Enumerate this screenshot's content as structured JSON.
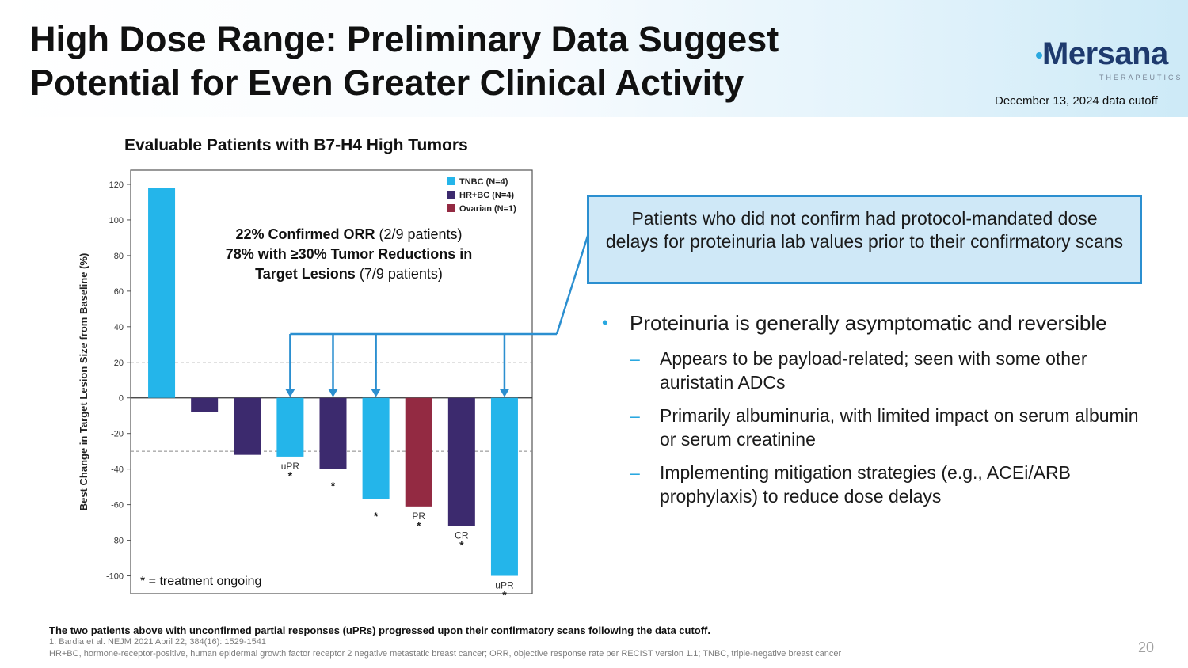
{
  "slide": {
    "title_line1": "High Dose Range: Preliminary Data Suggest",
    "title_line2": "Potential for Even Greater Clinical Activity",
    "cutoff": "December 13, 2024 data cutoff",
    "page_number": "20"
  },
  "logo": {
    "word": "Mersana",
    "sub": "THERAPEUTICS"
  },
  "chart_data": {
    "type": "bar",
    "title": "Evaluable Patients with B7-H4 High Tumors",
    "ylabel": "Best Change in Target Lesion Size from Baseline (%)",
    "xlabel": "",
    "ylim": [
      -110,
      128
    ],
    "yticks": [
      120,
      100,
      80,
      60,
      40,
      20,
      0,
      -20,
      -40,
      -60,
      -80,
      -100
    ],
    "reference_lines": [
      20,
      -30
    ],
    "legend": [
      {
        "name": "TNBC (N=4)",
        "color": "#24b5ea"
      },
      {
        "name": "HR+BC (N=4)",
        "color": "#3c2a6e"
      },
      {
        "name": "Ovarian (N=1)",
        "color": "#932a42"
      }
    ],
    "legend_position": "top-right",
    "bars": [
      {
        "value": 118,
        "group": "TNBC (N=4)",
        "label": "",
        "ongoing": false
      },
      {
        "value": -8,
        "group": "HR+BC (N=4)",
        "label": "",
        "ongoing": false
      },
      {
        "value": -32,
        "group": "HR+BC (N=4)",
        "label": "",
        "ongoing": false
      },
      {
        "value": -33,
        "group": "TNBC (N=4)",
        "label": "uPR",
        "ongoing": true
      },
      {
        "value": -40,
        "group": "HR+BC (N=4)",
        "label": "",
        "ongoing": true
      },
      {
        "value": -57,
        "group": "TNBC (N=4)",
        "label": "",
        "ongoing": true
      },
      {
        "value": -61,
        "group": "Ovarian (N=1)",
        "label": "PR",
        "ongoing": true
      },
      {
        "value": -72,
        "group": "HR+BC (N=4)",
        "label": "CR",
        "ongoing": true
      },
      {
        "value": -100,
        "group": "TNBC (N=4)",
        "label": "uPR",
        "ongoing": true
      }
    ],
    "arrow_targets": [
      3,
      4,
      5,
      8
    ],
    "annotation": {
      "line1_bold": "22% Confirmed ORR",
      "line1_rest": " (2/9 patients)",
      "line2_bold": "78% with ≥30% Tumor Reductions in",
      "line3_bold": "Target Lesions",
      "line3_rest": " (7/9 patients)"
    },
    "ongoing_marker": "*",
    "ongoing_note": "* = treatment ongoing"
  },
  "callout": {
    "text": "Patients who did not confirm had protocol-mandated dose delays for proteinuria lab values prior to their confirmatory scans"
  },
  "bullets": {
    "main": "Proteinuria is generally asymptomatic and reversible",
    "bullet_marker": "•",
    "dash_marker": "–",
    "subs": [
      "Appears to be payload-related; seen with some other auristatin ADCs",
      "Primarily albuminuria, with limited impact on serum albumin or serum creatinine",
      "Implementing mitigation strategies (e.g., ACEi/ARB prophylaxis) to reduce dose delays"
    ]
  },
  "footnotes": {
    "note": "The two patients above with unconfirmed partial responses (uPRs) progressed upon their confirmatory scans following the data cutoff.",
    "ref": "1. Bardia et al. NEJM 2021 April 22; 384(16): 1529-1541",
    "abbrev": "HR+BC, hormone-receptor-positive, human epidermal growth factor receptor 2 negative metastatic breast cancer; ORR, objective response rate per RECIST version 1.1; TNBC, triple-negative breast cancer"
  }
}
